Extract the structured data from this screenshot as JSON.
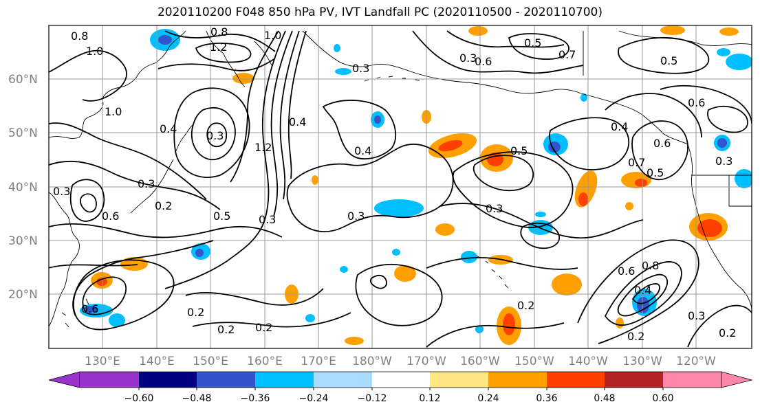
{
  "title": "2020110200 F048 850 hPa PV, IVT Landfall PC (2020110500 - 2020110700)",
  "lat_labels": [
    "60°N",
    "50°N",
    "40°N",
    "30°N",
    "20°N"
  ],
  "lon_labels": [
    "130°E",
    "140°E",
    "150°E",
    "160°E",
    "170°E",
    "180°W",
    "170°W",
    "160°W",
    "150°W",
    "140°W",
    "130°W",
    "120°W"
  ],
  "contour_labels": [
    "0.8",
    "1.0",
    "0.8",
    "1.2",
    "1.0",
    "0.3",
    "0.6",
    "0.5",
    "0.7",
    "0.5",
    "0.3",
    "1.0",
    "0.4",
    "0.3",
    "1.2",
    "0.4",
    "0.3",
    "0.3",
    "0.2",
    "0.5",
    "0.3",
    "0.3",
    "0.4",
    "0.5",
    "0.3",
    "0.4",
    "0.7",
    "0.6",
    "0.6",
    "0.5",
    "0.8",
    "0.6",
    "0.4",
    "0.2",
    "0.2",
    "0.6",
    "0.2",
    "0.2",
    "0.3",
    "0.2",
    "0.2",
    "0.3",
    "0.6"
  ],
  "colorbar": {
    "colors": [
      "#9933cc",
      "#000080",
      "#3355cc",
      "#00bfff",
      "#aaddff",
      "#ffffff",
      "#ffe680",
      "#ffa000",
      "#ff4000",
      "#b22222",
      "#ff88aa"
    ],
    "tick_labels": [
      "−0.60",
      "−0.48",
      "−0.36",
      "−0.24",
      "−0.12",
      "0.12",
      "0.24",
      "0.36",
      "0.48",
      "0.60"
    ]
  },
  "map_colors": {
    "frame": "#000000",
    "grid": "#999999",
    "contour": "#000000"
  }
}
